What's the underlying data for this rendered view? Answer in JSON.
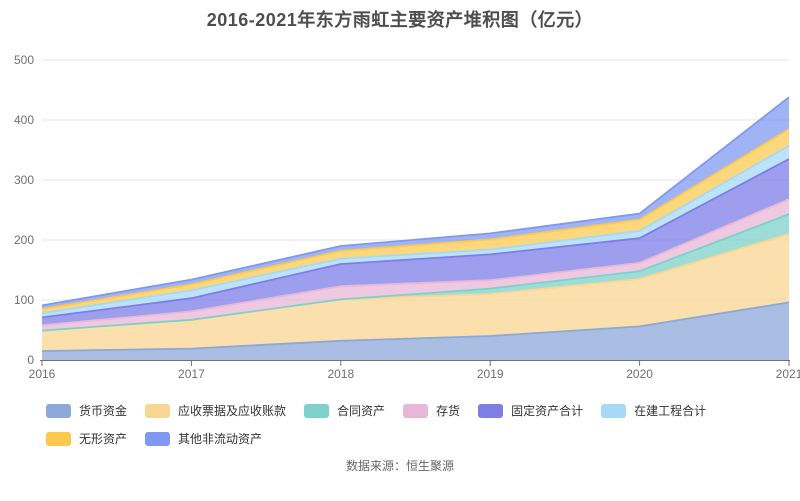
{
  "title": "2016-2021年东方雨虹主要资产堆积图（亿元）",
  "source": "数据来源：恒生聚源",
  "axis": {
    "x_labels": [
      "2016",
      "2017",
      "2018",
      "2019",
      "2020",
      "2021"
    ],
    "y_labels": [
      "0",
      "100",
      "200",
      "300",
      "400",
      "500"
    ],
    "label_color": "#6E7079",
    "grid_color": "#E0E6F1",
    "axis_line_color": "#6E7079"
  },
  "chart_data": {
    "type": "area",
    "stacked": true,
    "title": "2016-2021年东方雨虹主要资产堆积图（亿元）",
    "x": [
      2016,
      2017,
      2018,
      2019,
      2020,
      2021
    ],
    "xlabel": "",
    "ylabel": "",
    "ylim": [
      0,
      500
    ],
    "yticks": [
      0,
      100,
      200,
      300,
      400,
      500
    ],
    "grid": true,
    "legend_position": "bottom",
    "series": [
      {
        "name": "货币资金",
        "color": "#8CA8D8",
        "values": [
          15,
          19,
          32,
          40,
          56,
          96
        ]
      },
      {
        "name": "应收票据及应收账款",
        "color": "#FAD693",
        "values": [
          34,
          48,
          69,
          70,
          79,
          114
        ]
      },
      {
        "name": "合同资产",
        "color": "#7DD1CA",
        "values": [
          0,
          0,
          0,
          9,
          13,
          33
        ]
      },
      {
        "name": "存货",
        "color": "#E8B7D7",
        "values": [
          9,
          14,
          22,
          14,
          14,
          25
        ]
      },
      {
        "name": "固定资产合计",
        "color": "#7E7EE9",
        "values": [
          13,
          22,
          37,
          43,
          41,
          67
        ]
      },
      {
        "name": "在建工程合计",
        "color": "#A7D9F6",
        "values": [
          7,
          13,
          9,
          8,
          12,
          22
        ]
      },
      {
        "name": "无形资产",
        "color": "#FBC94F",
        "values": [
          7,
          10,
          13,
          17,
          19,
          28
        ]
      },
      {
        "name": "其他非流动资产",
        "color": "#7F99F2",
        "values": [
          6,
          8,
          8,
          10,
          10,
          53
        ]
      }
    ],
    "totals": [
      91,
      134,
      190,
      211,
      244,
      438
    ]
  }
}
